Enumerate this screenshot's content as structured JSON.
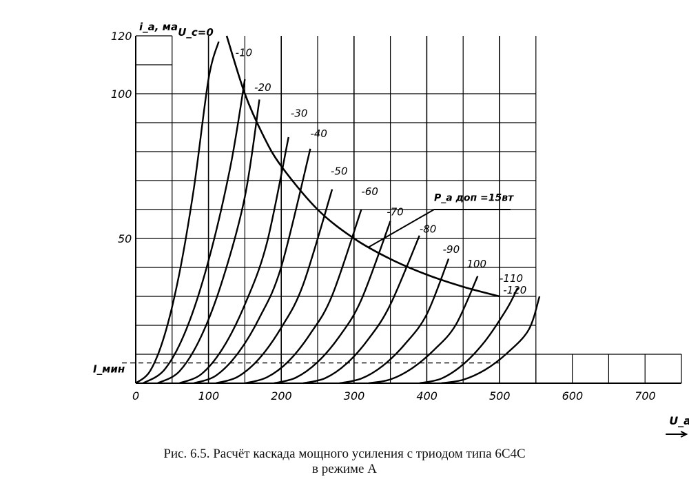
{
  "chart_data": {
    "type": "line",
    "title": "",
    "xlabel": "U_a, в",
    "ylabel": "i_a, ма",
    "xlim": [
      0,
      750
    ],
    "ylim": [
      0,
      120
    ],
    "x_ticks": [
      "0",
      "100",
      "200",
      "300",
      "400",
      "500",
      "600",
      "700"
    ],
    "y_ticks": [
      "50",
      "100",
      "120"
    ],
    "grid": true,
    "grid_step_x": 50,
    "grid_step_y": 10,
    "grid_extent_x": 550,
    "grid_extent_y": 120,
    "grid_ext_region": {
      "x": [
        550,
        750
      ],
      "y": [
        0,
        10
      ]
    },
    "curve_param_label": "U_c=0",
    "series": [
      {
        "name": "U_c=0",
        "label": "U_c=0",
        "x": [
          0,
          20,
          40,
          60,
          80,
          100,
          114
        ],
        "y": [
          0,
          4.3,
          16.9,
          38,
          67.5,
          105,
          118
        ]
      },
      {
        "name": "-10",
        "label": "-10",
        "x": [
          10,
          40,
          70,
          100,
          130,
          150
        ],
        "y": [
          0,
          4.8,
          18.9,
          42.3,
          74.7,
          105
        ]
      },
      {
        "name": "-20",
        "label": "-20",
        "x": [
          30,
          60,
          90,
          120,
          150,
          170
        ],
        "y": [
          0,
          4.1,
          16.2,
          36.2,
          64.4,
          98
        ]
      },
      {
        "name": "-30",
        "label": "-30",
        "x": [
          60,
          90,
          120,
          150,
          180,
          210
        ],
        "y": [
          0,
          3.1,
          12.2,
          27.2,
          48.2,
          85
        ]
      },
      {
        "name": "-40",
        "label": "-40",
        "x": [
          80,
          110,
          140,
          170,
          200,
          240
        ],
        "y": [
          0,
          2.6,
          10.2,
          22.6,
          40.2,
          81
        ]
      },
      {
        "name": "-50",
        "label": "-50",
        "x": [
          110,
          140,
          170,
          200,
          230,
          270
        ],
        "y": [
          0,
          2.2,
          8.6,
          19.2,
          34,
          67
        ]
      },
      {
        "name": "-60",
        "label": "-60",
        "x": [
          150,
          180,
          210,
          240,
          270,
          310
        ],
        "y": [
          0,
          2,
          7.6,
          17.1,
          30.3,
          60
        ]
      },
      {
        "name": "-70",
        "label": "-70",
        "x": [
          190,
          220,
          250,
          280,
          310,
          350
        ],
        "y": [
          0,
          1.9,
          7.3,
          16.2,
          28.8,
          56
        ]
      },
      {
        "name": "-80",
        "label": "-80",
        "x": [
          230,
          260,
          290,
          320,
          350,
          390
        ],
        "y": [
          0,
          1.7,
          6.8,
          15.3,
          27.2,
          51
        ]
      },
      {
        "name": "-90",
        "label": "-90",
        "x": [
          280,
          310,
          340,
          370,
          400,
          430
        ],
        "y": [
          0,
          1.6,
          6.1,
          13.5,
          23.8,
          43
        ]
      },
      {
        "name": "100",
        "label": "100",
        "x": [
          320,
          350,
          380,
          410,
          440,
          470
        ],
        "y": [
          0,
          1.3,
          5.2,
          11.5,
          20.2,
          37
        ]
      },
      {
        "name": "-110",
        "label": "-110",
        "x": [
          390,
          420,
          450,
          480,
          510,
          525
        ],
        "y": [
          0,
          1.6,
          6.5,
          14.5,
          25.7,
          33
        ]
      },
      {
        "name": "-120",
        "label": "-120",
        "x": [
          420,
          450,
          480,
          510,
          540,
          555
        ],
        "y": [
          0,
          1.2,
          4.6,
          10.3,
          18.4,
          30
        ]
      }
    ],
    "power_curve": {
      "label": "P_a доп =15вт",
      "P_watts": 15,
      "x": [
        125,
        150,
        175,
        200,
        250,
        300,
        350,
        400,
        450,
        500
      ],
      "y": [
        120,
        100,
        85.7,
        75,
        60,
        50,
        42.9,
        37.5,
        33.3,
        30
      ]
    },
    "i_min": {
      "label": "I_мин",
      "y": 7
    }
  },
  "caption": {
    "line1": "Рис. 6.5. Расчёт каскада мощного усиления с триодом типа 6С4С",
    "line2": "в режиме А"
  }
}
